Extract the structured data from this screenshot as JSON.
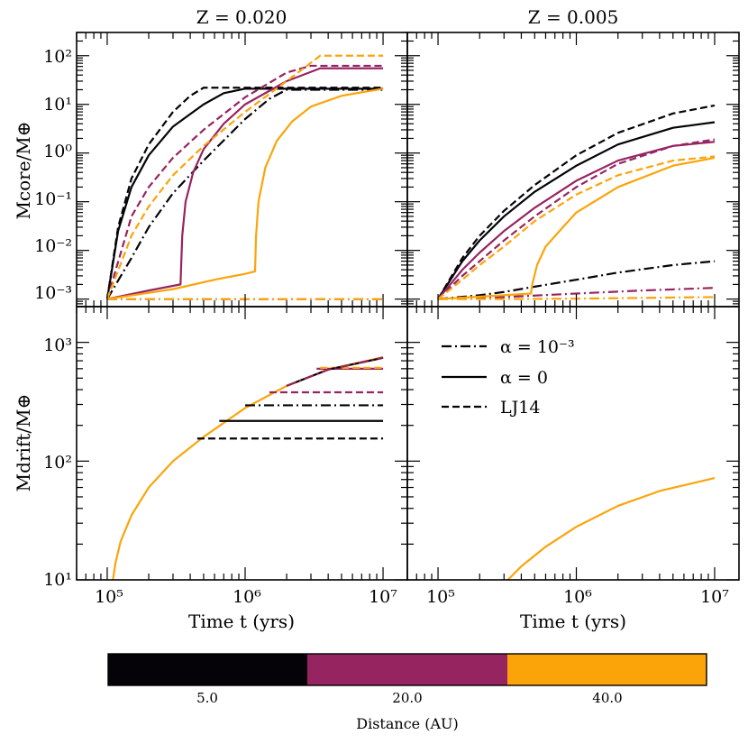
{
  "figure": {
    "colorbar": {
      "label": "Distance (AU)",
      "segments": [
        {
          "color": "#050308",
          "tick": "5.0"
        },
        {
          "color": "#962461",
          "tick": "20.0"
        },
        {
          "color": "#fba40a",
          "tick": "40.0"
        }
      ]
    },
    "legend": [
      {
        "style": "dashdot",
        "label": "α = 10⁻³"
      },
      {
        "style": "solid",
        "label": "α = 0"
      },
      {
        "style": "dashed",
        "label": "LJ14"
      }
    ],
    "x_tick_labels": [
      "10⁵",
      "10⁶",
      "10⁷"
    ],
    "xlabel": "Time t (yrs)"
  },
  "chart_data": [
    {
      "type": "line",
      "panel": "top-left",
      "title": "Z = 0.020",
      "xscale": "log",
      "yscale": "log",
      "xlim": [
        60000,
        15000000
      ],
      "ylim": [
        0.0007,
        300
      ],
      "ylabel": "Mcore/M⊕",
      "yticks": [
        0.001,
        0.01,
        0.1,
        1,
        10,
        100
      ],
      "ytick_labels": [
        "10⁻³",
        "10⁻²",
        "10⁻¹",
        "10⁰",
        "10¹",
        "10²"
      ],
      "series": [
        {
          "name": "5 AU LJ14",
          "color": "#050308",
          "style": "dashed",
          "x": [
            100000,
            120000,
            150000,
            200000,
            300000,
            400000,
            500000,
            10000000
          ],
          "y": [
            0.001,
            0.03,
            0.3,
            1.5,
            7,
            15,
            22,
            22
          ]
        },
        {
          "name": "5 AU alpha=0",
          "color": "#050308",
          "style": "solid",
          "x": [
            100000,
            120000,
            150000,
            200000,
            300000,
            500000,
            700000,
            1000000,
            10000000
          ],
          "y": [
            0.001,
            0.025,
            0.2,
            0.9,
            3.5,
            10,
            17,
            21,
            21
          ]
        },
        {
          "name": "5 AU alpha=1e-3",
          "color": "#050308",
          "style": "dashdot",
          "x": [
            100000,
            150000,
            200000,
            300000,
            500000,
            1000000,
            1500000,
            2000000,
            10000000
          ],
          "y": [
            0.001,
            0.007,
            0.03,
            0.15,
            0.7,
            5,
            13,
            20,
            20
          ]
        },
        {
          "name": "20 AU LJ14",
          "color": "#962461",
          "style": "dashed",
          "x": [
            100000,
            150000,
            200000,
            300000,
            500000,
            1000000,
            2000000,
            3000000,
            10000000
          ],
          "y": [
            0.001,
            0.05,
            0.2,
            0.8,
            3,
            14,
            45,
            62,
            62
          ]
        },
        {
          "name": "20 AU alpha=0",
          "color": "#962461",
          "style": "solid",
          "x": [
            100000,
            200000,
            340000,
            350000,
            370000,
            420000,
            500000,
            700000,
            1000000,
            2000000,
            3500000,
            10000000
          ],
          "y": [
            0.001,
            0.0015,
            0.002,
            0.02,
            0.1,
            0.4,
            1.2,
            4,
            10,
            30,
            55,
            55
          ]
        },
        {
          "name": "20 AU alpha=1e-3",
          "color": "#962461",
          "style": "dashdot",
          "x": [
            100000,
            10000000
          ],
          "y": [
            0.001,
            0.001
          ]
        },
        {
          "name": "40 AU LJ14",
          "color": "#fba40a",
          "style": "dashed",
          "x": [
            100000,
            150000,
            200000,
            300000,
            500000,
            1000000,
            2000000,
            3500000,
            10000000
          ],
          "y": [
            0.001,
            0.02,
            0.08,
            0.35,
            1.4,
            7,
            30,
            100,
            100
          ]
        },
        {
          "name": "40 AU alpha=0",
          "color": "#fba40a",
          "style": "solid",
          "x": [
            100000,
            300000,
            600000,
            1000000,
            1180000,
            1200000,
            1250000,
            1400000,
            1700000,
            2200000,
            3000000,
            5000000,
            10000000
          ],
          "y": [
            0.001,
            0.0016,
            0.0025,
            0.0033,
            0.0037,
            0.02,
            0.1,
            0.5,
            1.8,
            4.5,
            9,
            15,
            21
          ]
        },
        {
          "name": "40 AU alpha=1e-3",
          "color": "#fba40a",
          "style": "dashdot",
          "x": [
            100000,
            10000000
          ],
          "y": [
            0.001,
            0.001
          ]
        }
      ]
    },
    {
      "type": "line",
      "panel": "top-right",
      "title": "Z = 0.005",
      "xscale": "log",
      "yscale": "log",
      "xlim": [
        60000,
        15000000
      ],
      "ylim": [
        0.0007,
        300
      ],
      "series": [
        {
          "name": "5 AU LJ14",
          "color": "#050308",
          "style": "dashed",
          "x": [
            100000,
            150000,
            200000,
            300000,
            500000,
            1000000,
            2000000,
            5000000,
            10000000
          ],
          "y": [
            0.001,
            0.007,
            0.02,
            0.065,
            0.22,
            0.9,
            2.6,
            6.5,
            9.5
          ]
        },
        {
          "name": "5 AU alpha=0",
          "color": "#050308",
          "style": "solid",
          "x": [
            100000,
            150000,
            200000,
            300000,
            500000,
            1000000,
            2000000,
            5000000,
            10000000
          ],
          "y": [
            0.001,
            0.006,
            0.016,
            0.05,
            0.16,
            0.55,
            1.5,
            3.3,
            4.3
          ]
        },
        {
          "name": "5 AU alpha=1e-3",
          "color": "#050308",
          "style": "dashdot",
          "x": [
            100000,
            200000,
            300000,
            500000,
            1000000,
            2000000,
            5000000,
            10000000
          ],
          "y": [
            0.001,
            0.0012,
            0.0014,
            0.0018,
            0.0025,
            0.0035,
            0.005,
            0.006
          ]
        },
        {
          "name": "20 AU LJ14",
          "color": "#962461",
          "style": "dashed",
          "x": [
            100000,
            150000,
            200000,
            300000,
            500000,
            1000000,
            2000000,
            5000000,
            10000000
          ],
          "y": [
            0.001,
            0.003,
            0.006,
            0.016,
            0.05,
            0.2,
            0.6,
            1.4,
            1.9
          ]
        },
        {
          "name": "20 AU alpha=0",
          "color": "#962461",
          "style": "solid",
          "x": [
            100000,
            150000,
            200000,
            300000,
            500000,
            1000000,
            2000000,
            5000000,
            10000000
          ],
          "y": [
            0.001,
            0.004,
            0.009,
            0.025,
            0.075,
            0.27,
            0.7,
            1.4,
            1.7
          ]
        },
        {
          "name": "20 AU alpha=1e-3",
          "color": "#962461",
          "style": "dashdot",
          "x": [
            100000,
            300000,
            1000000,
            3000000,
            10000000
          ],
          "y": [
            0.001,
            0.0011,
            0.0013,
            0.0015,
            0.0017
          ]
        },
        {
          "name": "40 AU LJ14",
          "color": "#fba40a",
          "style": "dashed",
          "x": [
            100000,
            150000,
            200000,
            300000,
            500000,
            1000000,
            2000000,
            5000000,
            10000000
          ],
          "y": [
            0.001,
            0.0025,
            0.005,
            0.012,
            0.04,
            0.14,
            0.35,
            0.7,
            0.85
          ]
        },
        {
          "name": "40 AU alpha=0",
          "color": "#fba40a",
          "style": "solid",
          "x": [
            100000,
            300000,
            470000,
            480000,
            520000,
            600000,
            800000,
            1000000,
            2000000,
            5000000,
            10000000
          ],
          "y": [
            0.001,
            0.0012,
            0.0013,
            0.002,
            0.005,
            0.012,
            0.03,
            0.06,
            0.2,
            0.55,
            0.8
          ]
        },
        {
          "name": "40 AU alpha=1e-3",
          "color": "#fba40a",
          "style": "dashdot",
          "x": [
            100000,
            300000,
            1000000,
            3000000,
            10000000
          ],
          "y": [
            0.001,
            0.001,
            0.00102,
            0.00106,
            0.0011
          ]
        }
      ]
    },
    {
      "type": "line",
      "panel": "bottom-left",
      "xscale": "log",
      "yscale": "log",
      "xlim": [
        60000,
        15000000
      ],
      "ylim": [
        10,
        2000
      ],
      "xlabel": "Time t (yrs)",
      "ylabel": "Mdrift/M⊕",
      "yticks": [
        10,
        100,
        1000
      ],
      "ytick_labels": [
        "10¹",
        "10²",
        "10³"
      ],
      "series": [
        {
          "name": "envelope",
          "color": "#fba40a",
          "style": "solid",
          "x": [
            110000,
            115000,
            125000,
            150000,
            200000,
            300000,
            500000,
            1000000,
            2000000,
            4000000,
            10000000
          ],
          "y": [
            10,
            14,
            21,
            35,
            60,
            100,
            160,
            280,
            430,
            590,
            750
          ]
        },
        {
          "name": "5 AU LJ14 plateau",
          "color": "#050308",
          "style": "dashed",
          "x": [
            450000,
            10000000
          ],
          "y": [
            155,
            155
          ]
        },
        {
          "name": "5 AU alpha=0 plateau",
          "color": "#050308",
          "style": "solid",
          "x": [
            650000,
            10000000
          ],
          "y": [
            218,
            218
          ]
        },
        {
          "name": "5 AU alpha=1e-3 plateau",
          "color": "#050308",
          "style": "dashdot",
          "x": [
            1000000,
            10000000
          ],
          "y": [
            295,
            295
          ]
        },
        {
          "name": "20 AU LJ14 plateau",
          "color": "#962461",
          "style": "dashed",
          "x": [
            1500000,
            10000000
          ],
          "y": [
            380,
            380
          ]
        },
        {
          "name": "20 AU alpha=0 plateau",
          "color": "#962461",
          "style": "solid",
          "x": [
            3300000,
            10000000
          ],
          "y": [
            600,
            600
          ]
        },
        {
          "name": "40 AU LJ14 plateau",
          "color": "#fba40a",
          "style": "dashed",
          "x": [
            3500000,
            10000000
          ],
          "y": [
            610,
            610
          ]
        },
        {
          "name": "envelope 5 AU trace",
          "color": "#050308",
          "style": "solid",
          "x": [
            2000000,
            4000000,
            10000000
          ],
          "y": [
            430,
            590,
            740
          ]
        },
        {
          "name": "envelope 20 AU trace",
          "color": "#962461",
          "style": "dashdot",
          "x": [
            2000000,
            4000000,
            10000000
          ],
          "y": [
            430,
            590,
            745
          ]
        }
      ]
    },
    {
      "type": "line",
      "panel": "bottom-right",
      "xscale": "log",
      "yscale": "log",
      "xlim": [
        60000,
        15000000
      ],
      "ylim": [
        10,
        2000
      ],
      "xlabel": "Time t (yrs)",
      "series": [
        {
          "name": "envelope",
          "color": "#fba40a",
          "style": "solid",
          "x": [
            320000,
            400000,
            600000,
            1000000,
            2000000,
            4000000,
            10000000
          ],
          "y": [
            10,
            13,
            19,
            28,
            42,
            56,
            72
          ]
        }
      ]
    }
  ]
}
